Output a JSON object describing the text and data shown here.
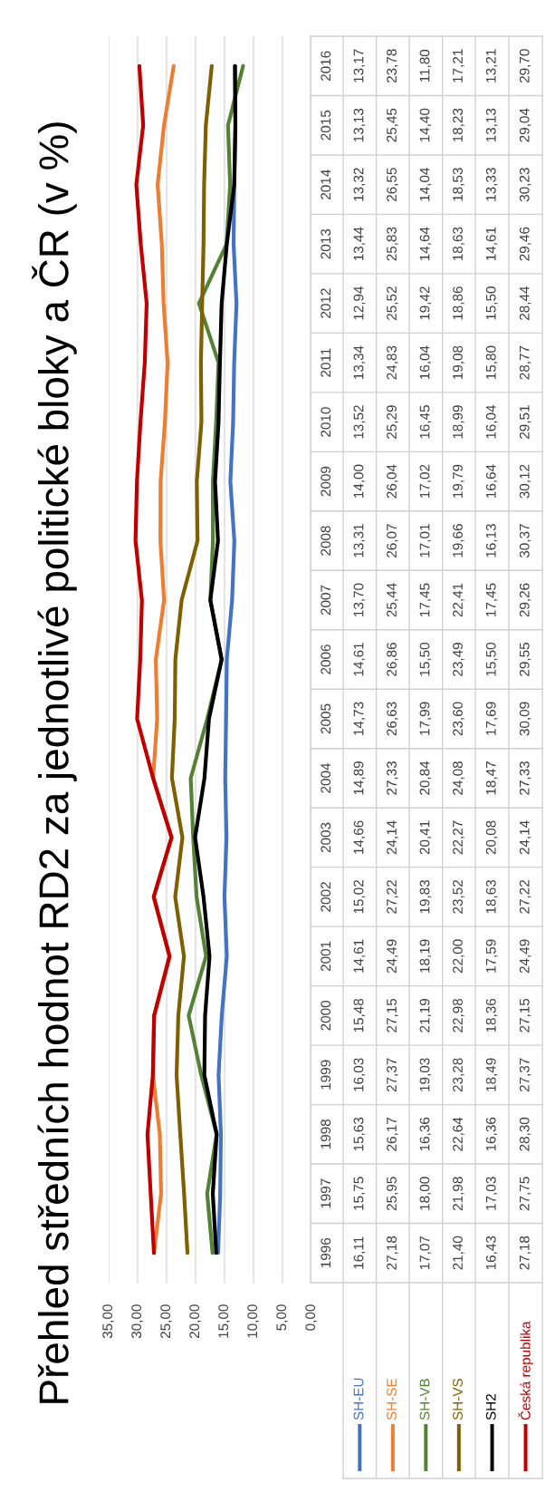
{
  "chart_data": {
    "type": "line",
    "orientation": "horizontal",
    "title": "Přehled středních hodnot RD2 za jednotlivé politické bloky a ČR (v %)",
    "categories": [
      "2016",
      "2015",
      "2014",
      "2013",
      "2012",
      "2011",
      "2010",
      "2009",
      "2008",
      "2007",
      "2006",
      "2005",
      "2004",
      "2003",
      "2002",
      "2001",
      "2000",
      "1999",
      "1998",
      "1997",
      "1996"
    ],
    "series": [
      {
        "name": "SH-EU",
        "color": "#4472c4",
        "values": [
          13.17,
          13.13,
          13.32,
          13.44,
          12.94,
          13.34,
          13.52,
          14.0,
          13.31,
          13.7,
          14.61,
          14.73,
          14.89,
          14.66,
          15.02,
          14.61,
          15.48,
          16.03,
          15.63,
          15.75,
          16.11
        ],
        "value_labels": [
          "13,17",
          "13,13",
          "13,32",
          "13,44",
          "12,94",
          "13,34",
          "13,52",
          "14,00",
          "13,31",
          "13,70",
          "14,61",
          "14,73",
          "14,89",
          "14,66",
          "15,02",
          "14,61",
          "15,48",
          "16,03",
          "15,63",
          "15,75",
          "16,11"
        ]
      },
      {
        "name": "SH-SE",
        "color": "#ed7d31",
        "values": [
          23.78,
          25.45,
          26.55,
          25.83,
          25.52,
          24.83,
          25.29,
          26.04,
          26.07,
          25.44,
          26.86,
          26.63,
          27.33,
          24.14,
          27.22,
          24.49,
          27.15,
          27.37,
          26.17,
          25.95,
          27.18
        ],
        "value_labels": [
          "23,78",
          "25,45",
          "26,55",
          "25,83",
          "25,52",
          "24,83",
          "25,29",
          "26,04",
          "26,07",
          "25,44",
          "26,86",
          "26,63",
          "27,33",
          "24,14",
          "27,22",
          "24,49",
          "27,15",
          "27,37",
          "26,17",
          "25,95",
          "27,18"
        ]
      },
      {
        "name": "SH-VB",
        "color": "#548235",
        "values": [
          11.8,
          14.4,
          14.04,
          14.64,
          19.42,
          16.04,
          16.45,
          17.02,
          17.01,
          17.45,
          15.5,
          17.99,
          20.84,
          20.41,
          19.83,
          18.19,
          21.19,
          19.03,
          16.36,
          18.0,
          17.07
        ],
        "value_labels": [
          "11,80",
          "14,40",
          "14,04",
          "14,64",
          "19,42",
          "16,04",
          "16,45",
          "17,02",
          "17,01",
          "17,45",
          "15,50",
          "17,99",
          "20,84",
          "20,41",
          "19,83",
          "18,19",
          "21,19",
          "19,03",
          "16,36",
          "18,00",
          "17,07"
        ]
      },
      {
        "name": "SH-VS",
        "color": "#7f6000",
        "values": [
          17.21,
          18.23,
          18.53,
          18.63,
          18.86,
          19.08,
          18.99,
          19.79,
          19.66,
          22.41,
          23.49,
          23.6,
          24.08,
          22.27,
          23.52,
          22.0,
          22.98,
          23.28,
          22.64,
          21.98,
          21.4
        ],
        "value_labels": [
          "17,21",
          "18,23",
          "18,53",
          "18,63",
          "18,86",
          "19,08",
          "18,99",
          "19,79",
          "19,66",
          "22,41",
          "23,49",
          "23,60",
          "24,08",
          "22,27",
          "23,52",
          "22,00",
          "22,98",
          "23,28",
          "22,64",
          "21,98",
          "21,40"
        ]
      },
      {
        "name": "SH2",
        "color": "#000000",
        "values": [
          13.21,
          13.13,
          13.33,
          14.61,
          15.5,
          15.8,
          16.04,
          16.64,
          16.13,
          17.45,
          15.5,
          17.69,
          18.47,
          20.08,
          18.63,
          17.59,
          18.36,
          18.49,
          16.36,
          17.03,
          16.43
        ],
        "value_labels": [
          "13,21",
          "13,13",
          "13,33",
          "14,61",
          "15,50",
          "15,80",
          "16,04",
          "16,64",
          "16,13",
          "17,45",
          "15,50",
          "17,69",
          "18,47",
          "20,08",
          "18,63",
          "17,59",
          "18,36",
          "18,49",
          "16,36",
          "17,03",
          "16,43"
        ]
      },
      {
        "name": "Česká republika",
        "color": "#c00000",
        "values": [
          29.7,
          29.04,
          30.23,
          29.46,
          28.44,
          28.77,
          29.51,
          30.12,
          30.37,
          29.26,
          29.55,
          30.09,
          27.33,
          24.14,
          27.22,
          24.49,
          27.15,
          27.37,
          28.3,
          27.75,
          27.18
        ],
        "value_labels": [
          "29,70",
          "29,04",
          "30,23",
          "29,46",
          "28,44",
          "28,77",
          "29,51",
          "30,12",
          "30,37",
          "29,26",
          "29,55",
          "30,09",
          "27,33",
          "24,14",
          "27,22",
          "24,49",
          "27,15",
          "27,37",
          "28,30",
          "27,75",
          "27,18"
        ]
      }
    ],
    "xlim": [
      35,
      0
    ],
    "xticks": [
      {
        "value": 0,
        "label": "0,00"
      },
      {
        "value": 5,
        "label": "5,00"
      },
      {
        "value": 10,
        "label": "10,00"
      },
      {
        "value": 15,
        "label": "15,00"
      },
      {
        "value": 20,
        "label": "20,00"
      },
      {
        "value": 25,
        "label": "25,00"
      },
      {
        "value": 30,
        "label": "30,00"
      },
      {
        "value": 35,
        "label": "35,00"
      }
    ],
    "grid": "x",
    "legend": "bottom"
  }
}
